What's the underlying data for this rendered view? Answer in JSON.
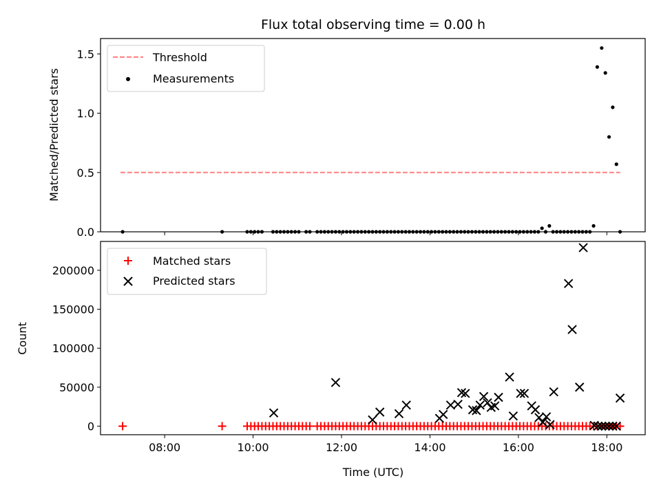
{
  "chart_data": [
    {
      "type": "scatter",
      "title": "Flux total observing time = 0.00 h",
      "xlabel": "",
      "ylabel": "Matched/Predicted stars",
      "xlim": [
        "06:33",
        "18:52"
      ],
      "ylim": [
        0,
        1.63
      ],
      "yticks": [
        "0.0",
        "0.5",
        "1.0",
        "1.5"
      ],
      "grid": false,
      "legend_position": "top-left",
      "threshold": {
        "name": "Threshold",
        "value": 0.5,
        "x_start": "07:00",
        "x_end": "18:18",
        "color": "#ff7f7f",
        "style": "dashed"
      },
      "series": [
        {
          "name": "Measurements",
          "color": "#000000",
          "marker": "dot",
          "points": [
            [
              "07:03",
              0
            ],
            [
              "09:18",
              0
            ],
            [
              "09:52",
              0
            ],
            [
              "09:57",
              0
            ],
            [
              "10:02",
              0
            ],
            [
              "10:07",
              0
            ],
            [
              "10:12",
              0
            ],
            [
              "10:27",
              0
            ],
            [
              "10:32",
              0
            ],
            [
              "10:37",
              0
            ],
            [
              "10:42",
              0
            ],
            [
              "10:47",
              0
            ],
            [
              "10:52",
              0
            ],
            [
              "10:57",
              0
            ],
            [
              "11:02",
              0
            ],
            [
              "11:12",
              0
            ],
            [
              "11:17",
              0
            ],
            [
              "11:27",
              0
            ],
            [
              "11:32",
              0
            ],
            [
              "11:37",
              0
            ],
            [
              "11:42",
              0
            ],
            [
              "11:47",
              0
            ],
            [
              "11:52",
              0
            ],
            [
              "11:57",
              0
            ],
            [
              "12:02",
              0
            ],
            [
              "12:07",
              0
            ],
            [
              "12:12",
              0
            ],
            [
              "12:17",
              0
            ],
            [
              "12:22",
              0
            ],
            [
              "12:27",
              0
            ],
            [
              "12:32",
              0
            ],
            [
              "12:37",
              0
            ],
            [
              "12:42",
              0
            ],
            [
              "12:47",
              0
            ],
            [
              "12:52",
              0
            ],
            [
              "12:57",
              0
            ],
            [
              "13:02",
              0
            ],
            [
              "13:07",
              0
            ],
            [
              "13:12",
              0
            ],
            [
              "13:17",
              0
            ],
            [
              "13:22",
              0
            ],
            [
              "13:27",
              0
            ],
            [
              "13:32",
              0
            ],
            [
              "13:37",
              0
            ],
            [
              "13:42",
              0
            ],
            [
              "13:47",
              0
            ],
            [
              "13:52",
              0
            ],
            [
              "13:57",
              0
            ],
            [
              "14:02",
              0
            ],
            [
              "14:07",
              0
            ],
            [
              "14:12",
              0
            ],
            [
              "14:17",
              0
            ],
            [
              "14:22",
              0
            ],
            [
              "14:27",
              0
            ],
            [
              "14:32",
              0
            ],
            [
              "14:37",
              0
            ],
            [
              "14:42",
              0
            ],
            [
              "14:47",
              0
            ],
            [
              "14:52",
              0
            ],
            [
              "14:57",
              0
            ],
            [
              "15:02",
              0
            ],
            [
              "15:07",
              0
            ],
            [
              "15:12",
              0
            ],
            [
              "15:17",
              0
            ],
            [
              "15:22",
              0
            ],
            [
              "15:27",
              0
            ],
            [
              "15:32",
              0
            ],
            [
              "15:37",
              0
            ],
            [
              "15:42",
              0
            ],
            [
              "15:47",
              0
            ],
            [
              "15:52",
              0
            ],
            [
              "15:57",
              0
            ],
            [
              "16:02",
              0
            ],
            [
              "16:07",
              0
            ],
            [
              "16:12",
              0
            ],
            [
              "16:17",
              0
            ],
            [
              "16:22",
              0
            ],
            [
              "16:27",
              0
            ],
            [
              "16:32",
              0.03
            ],
            [
              "16:37",
              0
            ],
            [
              "16:42",
              0.05
            ],
            [
              "16:47",
              0
            ],
            [
              "16:52",
              0
            ],
            [
              "16:57",
              0
            ],
            [
              "17:02",
              0
            ],
            [
              "17:07",
              0
            ],
            [
              "17:12",
              0
            ],
            [
              "17:17",
              0
            ],
            [
              "17:22",
              0
            ],
            [
              "17:27",
              0
            ],
            [
              "17:32",
              0
            ],
            [
              "17:37",
              0
            ],
            [
              "17:42",
              0.05
            ],
            [
              "17:47",
              1.39
            ],
            [
              "17:53",
              1.55
            ],
            [
              "17:58",
              1.34
            ],
            [
              "18:03",
              0.8
            ],
            [
              "18:08",
              1.05
            ],
            [
              "18:13",
              0.57
            ],
            [
              "18:18",
              0
            ]
          ]
        }
      ]
    },
    {
      "type": "scatter",
      "title": "",
      "xlabel": "Time (UTC)",
      "ylabel": "Count",
      "xlim": [
        "06:33",
        "18:52"
      ],
      "xticks": [
        "08:00",
        "10:00",
        "12:00",
        "14:00",
        "16:00",
        "18:00"
      ],
      "ylim": [
        -11000,
        237000
      ],
      "yticks": [
        "0",
        "50000",
        "100000",
        "150000",
        "200000"
      ],
      "grid": false,
      "legend_position": "top-left",
      "series": [
        {
          "name": "Matched stars",
          "color": "#ff0000",
          "marker": "plus",
          "x": [
            "07:03",
            "09:18",
            "09:52",
            "09:57",
            "10:02",
            "10:07",
            "10:12",
            "10:17",
            "10:22",
            "10:27",
            "10:32",
            "10:37",
            "10:42",
            "10:47",
            "10:52",
            "10:57",
            "11:02",
            "11:07",
            "11:12",
            "11:17",
            "11:27",
            "11:32",
            "11:37",
            "11:42",
            "11:47",
            "11:52",
            "11:57",
            "12:02",
            "12:07",
            "12:12",
            "12:17",
            "12:22",
            "12:27",
            "12:32",
            "12:37",
            "12:42",
            "12:47",
            "12:52",
            "12:57",
            "13:02",
            "13:07",
            "13:12",
            "13:17",
            "13:22",
            "13:27",
            "13:32",
            "13:37",
            "13:42",
            "13:47",
            "13:52",
            "13:57",
            "14:02",
            "14:07",
            "14:12",
            "14:17",
            "14:22",
            "14:27",
            "14:32",
            "14:37",
            "14:42",
            "14:47",
            "14:52",
            "14:57",
            "15:02",
            "15:07",
            "15:12",
            "15:17",
            "15:22",
            "15:27",
            "15:32",
            "15:37",
            "15:42",
            "15:47",
            "15:52",
            "15:57",
            "16:02",
            "16:07",
            "16:12",
            "16:17",
            "16:22",
            "16:27",
            "16:32",
            "16:37",
            "16:42",
            "16:47",
            "16:52",
            "16:57",
            "17:02",
            "17:07",
            "17:12",
            "17:17",
            "17:22",
            "17:27",
            "17:32",
            "17:37",
            "17:42",
            "17:47",
            "17:53",
            "17:58",
            "18:03",
            "18:08",
            "18:13",
            "18:18"
          ],
          "y_constant": 0
        },
        {
          "name": "Predicted stars",
          "color": "#000000",
          "marker": "x",
          "points": [
            [
              "10:28",
              17000
            ],
            [
              "11:52",
              56000
            ],
            [
              "12:42",
              8000
            ],
            [
              "12:52",
              18000
            ],
            [
              "13:18",
              16000
            ],
            [
              "13:28",
              27000
            ],
            [
              "14:13",
              10000
            ],
            [
              "14:18",
              15000
            ],
            [
              "14:28",
              27000
            ],
            [
              "14:38",
              28000
            ],
            [
              "14:43",
              43000
            ],
            [
              "14:48",
              42000
            ],
            [
              "14:58",
              21000
            ],
            [
              "15:03",
              20000
            ],
            [
              "15:08",
              27000
            ],
            [
              "15:13",
              38000
            ],
            [
              "15:18",
              30000
            ],
            [
              "15:23",
              24000
            ],
            [
              "15:28",
              26000
            ],
            [
              "15:33",
              37000
            ],
            [
              "15:48",
              63000
            ],
            [
              "15:53",
              13000
            ],
            [
              "16:03",
              42000
            ],
            [
              "16:08",
              42000
            ],
            [
              "16:18",
              26000
            ],
            [
              "16:23",
              21000
            ],
            [
              "16:28",
              11000
            ],
            [
              "16:33",
              5000
            ],
            [
              "16:38",
              12000
            ],
            [
              "16:43",
              2000
            ],
            [
              "16:48",
              44000
            ],
            [
              "17:08",
              183000
            ],
            [
              "17:13",
              124000
            ],
            [
              "17:23",
              50000
            ],
            [
              "17:28",
              229000
            ],
            [
              "17:43",
              1000
            ],
            [
              "17:48",
              0
            ],
            [
              "17:53",
              0
            ],
            [
              "17:58",
              0
            ],
            [
              "18:03",
              0
            ],
            [
              "18:08",
              0
            ],
            [
              "18:13",
              0
            ],
            [
              "18:18",
              36000
            ]
          ]
        }
      ]
    }
  ]
}
